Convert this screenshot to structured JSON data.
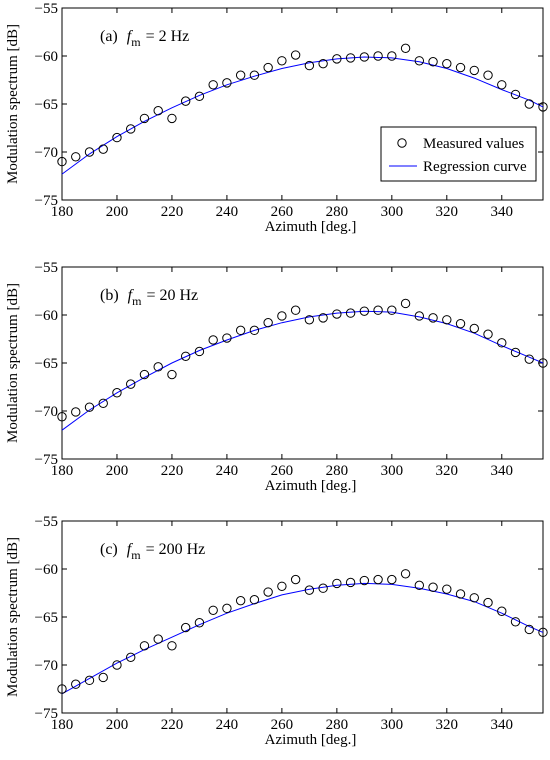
{
  "colors": {
    "regression": "#0000ff",
    "marker": "#000000",
    "axis": "#000000",
    "background": "#ffffff"
  },
  "chart_data": [
    {
      "type": "scatter",
      "panel_prefix": "(a)",
      "panel_var": "f",
      "panel_sub": "m",
      "panel_value": "= 2 Hz",
      "xlabel": "Azimuth [deg.]",
      "ylabel": "Modulation spectrum [dB]",
      "xlim": [
        180,
        355
      ],
      "ylim": [
        -75,
        -55
      ],
      "xticks": [
        "180",
        "200",
        "220",
        "240",
        "260",
        "280",
        "300",
        "320",
        "340"
      ],
      "yticks": [
        "−55",
        "−60",
        "−65",
        "−70",
        "−75"
      ],
      "grid": false,
      "legend": {
        "placement": "bottom-right",
        "entries": [
          "Measured values",
          "Regression curve"
        ]
      },
      "series": [
        {
          "name": "Measured values",
          "marker": "circle",
          "x": [
            180,
            185,
            190,
            195,
            200,
            205,
            210,
            215,
            220,
            225,
            230,
            235,
            240,
            245,
            250,
            255,
            260,
            265,
            270,
            275,
            280,
            285,
            290,
            295,
            300,
            305,
            310,
            315,
            320,
            325,
            330,
            335,
            340,
            345,
            350,
            355
          ],
          "y": [
            -71.0,
            -70.5,
            -70.0,
            -69.7,
            -68.5,
            -67.6,
            -66.5,
            -65.7,
            -66.5,
            -64.7,
            -64.2,
            -63.0,
            -62.8,
            -62.0,
            -62.0,
            -61.2,
            -60.5,
            -59.9,
            -61.0,
            -60.8,
            -60.3,
            -60.2,
            -60.1,
            -60.0,
            -60.0,
            -59.2,
            -60.5,
            -60.6,
            -60.8,
            -61.2,
            -61.5,
            -62.0,
            -63.0,
            -64.0,
            -65.0,
            -65.3
          ]
        },
        {
          "name": "Regression curve",
          "kind": "line",
          "x": [
            180,
            190,
            200,
            210,
            220,
            230,
            240,
            250,
            260,
            270,
            280,
            290,
            300,
            310,
            320,
            330,
            340,
            350,
            355
          ],
          "y": [
            -72.3,
            -70.2,
            -68.4,
            -66.8,
            -65.4,
            -64.1,
            -63.0,
            -62.1,
            -61.3,
            -60.7,
            -60.3,
            -60.1,
            -60.2,
            -60.6,
            -61.3,
            -62.3,
            -63.5,
            -64.6,
            -65.3
          ]
        }
      ]
    },
    {
      "type": "scatter",
      "panel_prefix": "(b)",
      "panel_var": "f",
      "panel_sub": "m",
      "panel_value": "= 20 Hz",
      "xlabel": "Azimuth [deg.]",
      "ylabel": "Modulation spectrum [dB]",
      "xlim": [
        180,
        355
      ],
      "ylim": [
        -75,
        -55
      ],
      "xticks": [
        "180",
        "200",
        "220",
        "240",
        "260",
        "280",
        "300",
        "320",
        "340"
      ],
      "yticks": [
        "−55",
        "−60",
        "−65",
        "−70",
        "−75"
      ],
      "grid": false,
      "series": [
        {
          "name": "Measured values",
          "marker": "circle",
          "x": [
            180,
            185,
            190,
            195,
            200,
            205,
            210,
            215,
            220,
            225,
            230,
            235,
            240,
            245,
            250,
            255,
            260,
            265,
            270,
            275,
            280,
            285,
            290,
            295,
            300,
            305,
            310,
            315,
            320,
            325,
            330,
            335,
            340,
            345,
            350,
            355
          ],
          "y": [
            -70.6,
            -70.1,
            -69.6,
            -69.2,
            -68.1,
            -67.2,
            -66.2,
            -65.4,
            -66.2,
            -64.3,
            -63.8,
            -62.6,
            -62.4,
            -61.6,
            -61.6,
            -60.8,
            -60.1,
            -59.5,
            -60.5,
            -60.3,
            -59.9,
            -59.8,
            -59.6,
            -59.5,
            -59.5,
            -58.8,
            -60.1,
            -60.3,
            -60.5,
            -60.9,
            -61.4,
            -62.0,
            -62.9,
            -63.9,
            -64.6,
            -65.0
          ]
        },
        {
          "name": "Regression curve",
          "kind": "line",
          "x": [
            180,
            190,
            200,
            210,
            220,
            230,
            240,
            250,
            260,
            270,
            280,
            290,
            300,
            310,
            320,
            330,
            340,
            350,
            355
          ],
          "y": [
            -72.0,
            -69.9,
            -68.1,
            -66.5,
            -65.0,
            -63.7,
            -62.6,
            -61.6,
            -60.8,
            -60.2,
            -59.8,
            -59.6,
            -59.7,
            -60.2,
            -60.9,
            -61.9,
            -63.2,
            -64.4,
            -65.0
          ]
        }
      ]
    },
    {
      "type": "scatter",
      "panel_prefix": "(c)",
      "panel_var": "f",
      "panel_sub": "m",
      "panel_value": "= 200 Hz",
      "xlabel": "Azimuth [deg.]",
      "ylabel": "Modulation spectrum [dB]",
      "xlim": [
        180,
        355
      ],
      "ylim": [
        -75,
        -55
      ],
      "xticks": [
        "180",
        "200",
        "220",
        "240",
        "260",
        "280",
        "300",
        "320",
        "340"
      ],
      "yticks": [
        "−55",
        "−60",
        "−65",
        "−70",
        "−75"
      ],
      "grid": false,
      "series": [
        {
          "name": "Measured values",
          "marker": "circle",
          "x": [
            180,
            185,
            190,
            195,
            200,
            205,
            210,
            215,
            220,
            225,
            230,
            235,
            240,
            245,
            250,
            255,
            260,
            265,
            270,
            275,
            280,
            285,
            290,
            295,
            300,
            305,
            310,
            315,
            320,
            325,
            330,
            335,
            340,
            345,
            350,
            355
          ],
          "y": [
            -72.5,
            -72.0,
            -71.6,
            -71.3,
            -70.0,
            -69.2,
            -68.0,
            -67.3,
            -68.0,
            -66.1,
            -65.6,
            -64.3,
            -64.1,
            -63.3,
            -63.2,
            -62.4,
            -61.8,
            -61.1,
            -62.2,
            -62.0,
            -61.5,
            -61.4,
            -61.2,
            -61.1,
            -61.1,
            -60.5,
            -61.7,
            -61.9,
            -62.1,
            -62.6,
            -63.0,
            -63.5,
            -64.4,
            -65.5,
            -66.3,
            -66.6
          ]
        },
        {
          "name": "Regression curve",
          "kind": "line",
          "x": [
            180,
            190,
            200,
            210,
            220,
            230,
            240,
            250,
            260,
            270,
            280,
            290,
            300,
            310,
            320,
            330,
            340,
            350,
            355
          ],
          "y": [
            -73.0,
            -71.4,
            -69.8,
            -68.4,
            -67.1,
            -65.8,
            -64.6,
            -63.6,
            -62.7,
            -62.1,
            -61.7,
            -61.5,
            -61.6,
            -62.0,
            -62.6,
            -63.4,
            -64.6,
            -66.0,
            -66.6
          ]
        }
      ]
    }
  ]
}
